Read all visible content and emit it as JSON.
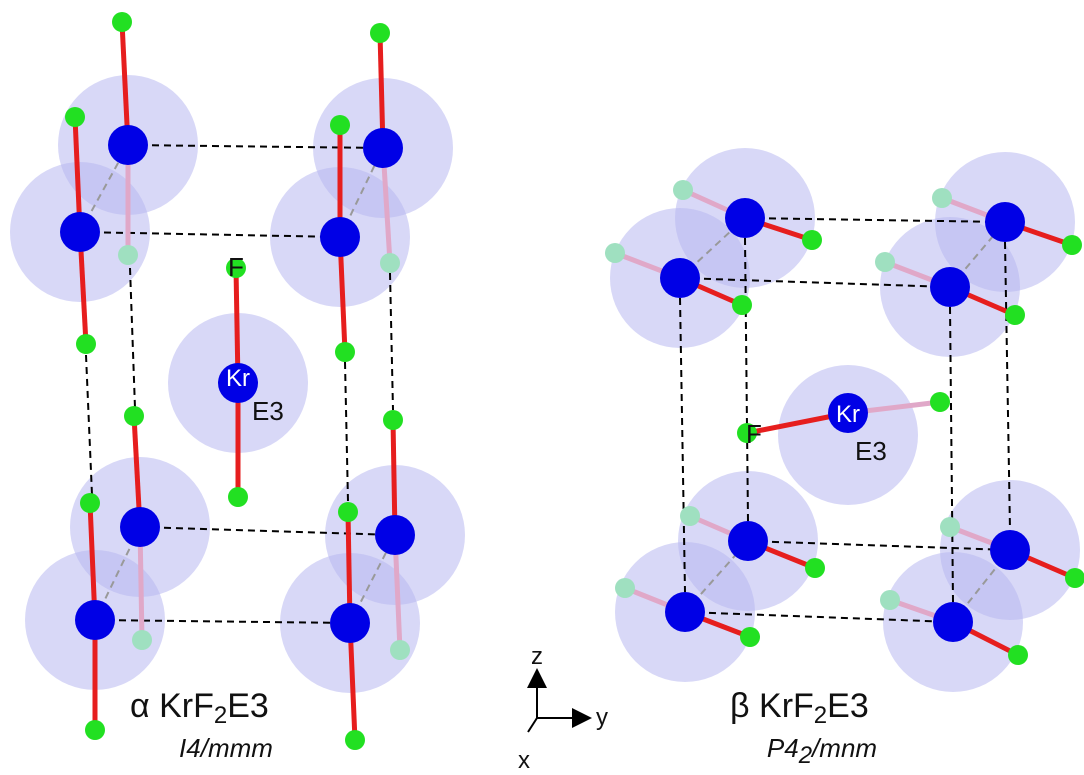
{
  "alpha": {
    "labels": {
      "fluorine": "F",
      "krypton": "Kr",
      "lone_pairs": "E3"
    },
    "title": {
      "greek": "α",
      "formula": [
        "KrF",
        "2",
        "E3"
      ]
    },
    "space_group": [
      "I4/mmm"
    ]
  },
  "beta": {
    "labels": {
      "fluorine": "F",
      "krypton": "Kr",
      "lone_pairs": "E3"
    },
    "title": {
      "greek": "β",
      "formula": [
        "KrF",
        "2",
        "E3"
      ]
    },
    "space_group": [
      "P4",
      "2",
      "/mnm"
    ]
  },
  "axes": {
    "z": "z",
    "y": "y",
    "x": "x"
  }
}
